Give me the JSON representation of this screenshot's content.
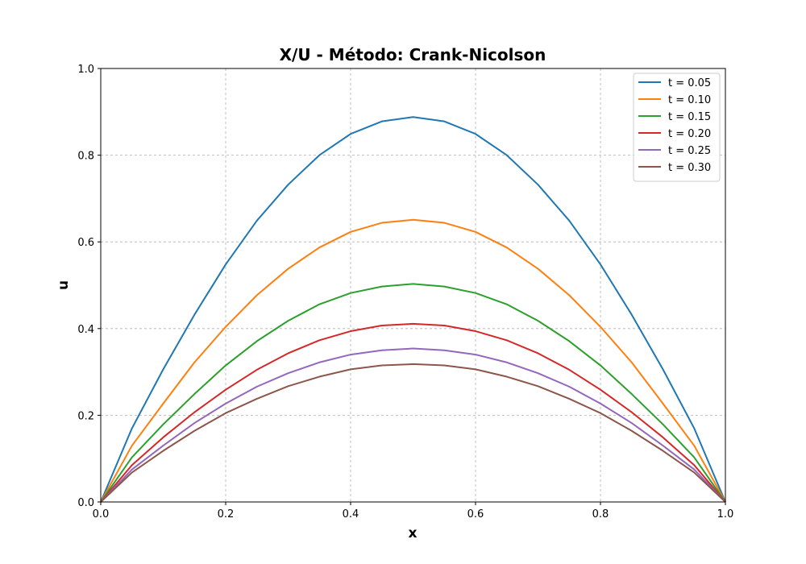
{
  "chart_data": {
    "type": "line",
    "title": "X/U - Método: Crank-Nicolson",
    "xlabel": "x",
    "ylabel": "u",
    "xlim": [
      0.0,
      1.0
    ],
    "ylim": [
      0.0,
      1.0
    ],
    "xticks": [
      0.0,
      0.2,
      0.4,
      0.6,
      0.8,
      1.0
    ],
    "yticks": [
      0.0,
      0.2,
      0.4,
      0.6,
      0.8,
      1.0
    ],
    "xtick_labels": [
      "0.0",
      "0.2",
      "0.4",
      "0.6",
      "0.8",
      "1.0"
    ],
    "ytick_labels": [
      "0.0",
      "0.2",
      "0.4",
      "0.6",
      "0.8",
      "1.0"
    ],
    "grid": true,
    "legend_position": "top-right",
    "x": [
      0.0,
      0.05,
      0.1,
      0.15,
      0.2,
      0.25,
      0.3,
      0.35,
      0.4,
      0.45,
      0.5,
      0.55,
      0.6,
      0.65,
      0.7,
      0.75,
      0.8,
      0.85,
      0.9,
      0.95,
      1.0
    ],
    "series": [
      {
        "name": "t = 0.05",
        "color": "#1f77b4",
        "values": [
          0.0,
          0.17,
          0.306,
          0.432,
          0.548,
          0.649,
          0.732,
          0.8,
          0.849,
          0.878,
          0.888,
          0.878,
          0.849,
          0.8,
          0.732,
          0.649,
          0.548,
          0.432,
          0.306,
          0.17,
          0.0
        ]
      },
      {
        "name": "t = 0.10",
        "color": "#ff7f0e",
        "values": [
          0.0,
          0.13,
          0.227,
          0.322,
          0.404,
          0.477,
          0.538,
          0.587,
          0.623,
          0.644,
          0.651,
          0.644,
          0.623,
          0.587,
          0.538,
          0.477,
          0.404,
          0.322,
          0.227,
          0.13,
          0.0
        ]
      },
      {
        "name": "t = 0.15",
        "color": "#2ca02c",
        "values": [
          0.0,
          0.103,
          0.179,
          0.249,
          0.315,
          0.371,
          0.418,
          0.456,
          0.482,
          0.497,
          0.503,
          0.497,
          0.482,
          0.456,
          0.418,
          0.371,
          0.315,
          0.249,
          0.179,
          0.103,
          0.0
        ]
      },
      {
        "name": "t = 0.20",
        "color": "#d62728",
        "values": [
          0.0,
          0.085,
          0.149,
          0.207,
          0.259,
          0.305,
          0.343,
          0.373,
          0.394,
          0.407,
          0.411,
          0.407,
          0.394,
          0.373,
          0.343,
          0.305,
          0.259,
          0.207,
          0.149,
          0.085,
          0.0
        ]
      },
      {
        "name": "t = 0.25",
        "color": "#9467bd",
        "values": [
          0.0,
          0.075,
          0.13,
          0.182,
          0.227,
          0.266,
          0.297,
          0.322,
          0.34,
          0.35,
          0.354,
          0.35,
          0.34,
          0.322,
          0.297,
          0.266,
          0.227,
          0.182,
          0.13,
          0.075,
          0.0
        ]
      },
      {
        "name": "t = 0.30",
        "color": "#8c564b",
        "values": [
          0.0,
          0.068,
          0.118,
          0.164,
          0.205,
          0.238,
          0.267,
          0.289,
          0.306,
          0.315,
          0.318,
          0.315,
          0.306,
          0.289,
          0.267,
          0.238,
          0.205,
          0.164,
          0.118,
          0.068,
          0.0
        ]
      }
    ]
  }
}
